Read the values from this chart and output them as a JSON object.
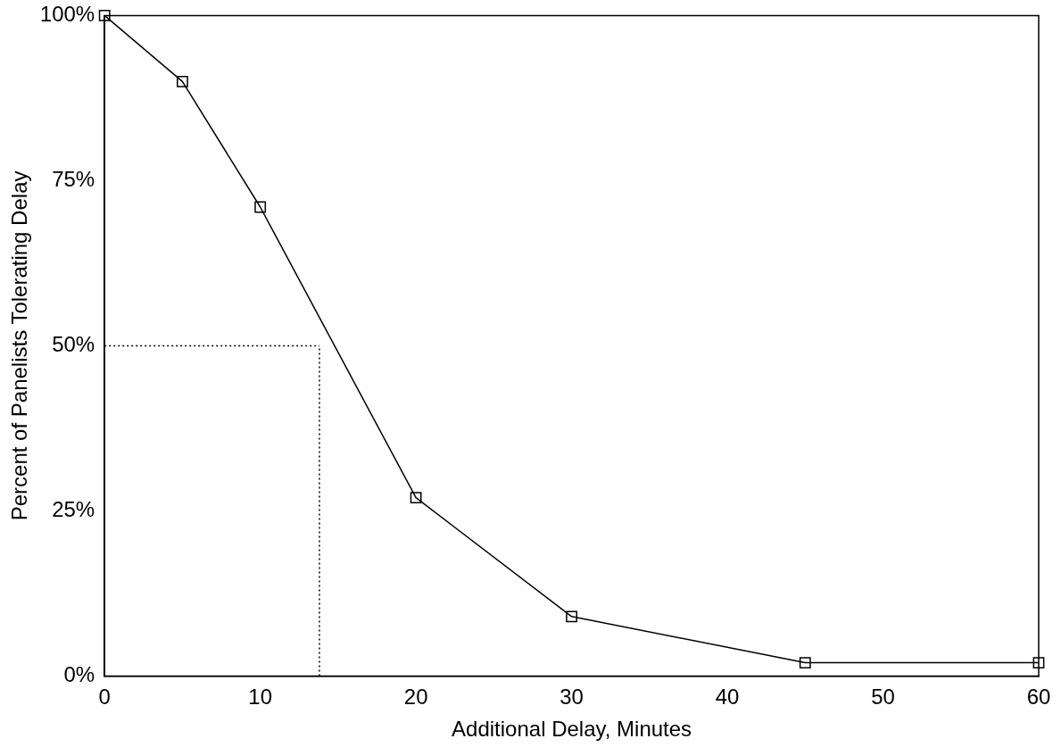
{
  "chart_data": {
    "type": "line",
    "xlabel": "Additional Delay, Minutes",
    "ylabel": "Percent of Panelists Tolerating Delay",
    "x": [
      0,
      5,
      10,
      20,
      30,
      45,
      60
    ],
    "series": [
      {
        "color": "#000000",
        "values": [
          100,
          90,
          71,
          27,
          9,
          2,
          2
        ]
      }
    ],
    "xlim": [
      0,
      60
    ],
    "xticks": [
      0,
      10,
      20,
      30,
      40,
      50,
      60
    ],
    "ylim": [
      0,
      100
    ],
    "yticks": [
      {
        "value": 0,
        "label": "0%"
      },
      {
        "value": 25,
        "label": "25%"
      },
      {
        "value": 50,
        "label": "50%"
      },
      {
        "value": 75,
        "label": "75%"
      },
      {
        "value": 100,
        "label": "100%"
      }
    ],
    "grid": false,
    "legend": false,
    "marker": "square",
    "line_style": "solid",
    "ref_lines": [
      {
        "axis": "y",
        "value": 50,
        "label": null,
        "line_style": "dotted",
        "color": "#000000"
      },
      {
        "axis": "x",
        "value": 13.8,
        "label": null,
        "line_style": "dotted",
        "color": "#000000"
      }
    ]
  }
}
